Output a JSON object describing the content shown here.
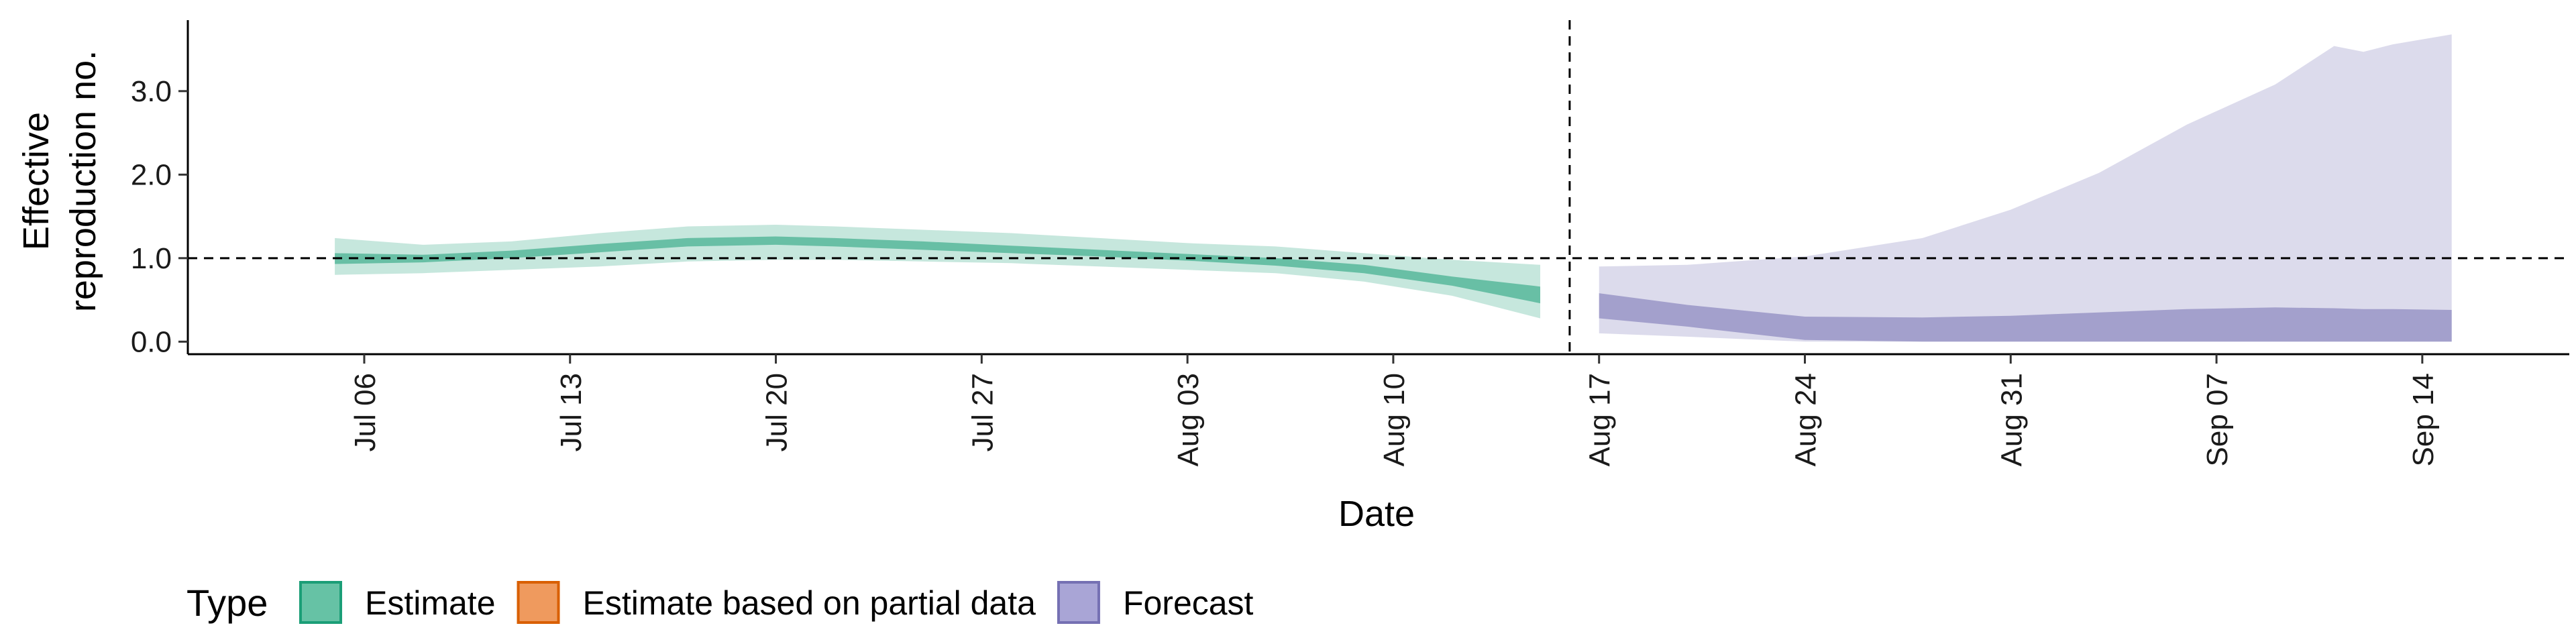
{
  "chart_data": {
    "type": "area",
    "xlabel": "Date",
    "ylabel_lines": [
      "Effective",
      "reproduction no."
    ],
    "x_type": "date",
    "x_ticks": [
      {
        "date": "2020-07-06",
        "label": "Jul 06"
      },
      {
        "date": "2020-07-13",
        "label": "Jul 13"
      },
      {
        "date": "2020-07-20",
        "label": "Jul 20"
      },
      {
        "date": "2020-07-27",
        "label": "Jul 27"
      },
      {
        "date": "2020-08-03",
        "label": "Aug 03"
      },
      {
        "date": "2020-08-10",
        "label": "Aug 10"
      },
      {
        "date": "2020-08-17",
        "label": "Aug 17"
      },
      {
        "date": "2020-08-24",
        "label": "Aug 24"
      },
      {
        "date": "2020-08-31",
        "label": "Aug 31"
      },
      {
        "date": "2020-09-07",
        "label": "Sep 07"
      },
      {
        "date": "2020-09-14",
        "label": "Sep 14"
      }
    ],
    "xlim": [
      "2020-06-30",
      "2020-09-19"
    ],
    "y_ticks": [
      {
        "value": 0,
        "label": "0.0"
      },
      {
        "value": 1,
        "label": "1.0"
      },
      {
        "value": 2,
        "label": "2.0"
      },
      {
        "value": 3,
        "label": "3.0"
      }
    ],
    "ylim": [
      -0.15,
      3.85
    ],
    "reference_line_y": 1.0,
    "forecast_start_line": "2020-08-16",
    "grid": false,
    "legend": {
      "title": "Type",
      "position": "bottom",
      "items": [
        {
          "label": "Estimate",
          "fill": "#66c2a5",
          "border": "#1b9e77"
        },
        {
          "label": "Estimate based on partial data",
          "fill": "#ef9a5e",
          "border": "#d95f02"
        },
        {
          "label": "Forecast",
          "fill": "#a9a5d6",
          "border": "#7570b3"
        }
      ]
    },
    "series": [
      {
        "name": "Estimate",
        "color": "#1b9e77",
        "outer_alpha": 0.25,
        "inner_alpha": 0.55,
        "points": [
          {
            "x": "2020-07-05",
            "outer": [
              0.8,
              1.24
            ],
            "inner": [
              0.93,
              1.06
            ]
          },
          {
            "x": "2020-07-08",
            "outer": [
              0.82,
              1.16
            ],
            "inner": [
              0.95,
              1.04
            ]
          },
          {
            "x": "2020-07-11",
            "outer": [
              0.86,
              1.2
            ],
            "inner": [
              1.0,
              1.09
            ]
          },
          {
            "x": "2020-07-14",
            "outer": [
              0.9,
              1.3
            ],
            "inner": [
              1.07,
              1.17
            ]
          },
          {
            "x": "2020-07-17",
            "outer": [
              0.96,
              1.38
            ],
            "inner": [
              1.14,
              1.24
            ]
          },
          {
            "x": "2020-07-20",
            "outer": [
              0.98,
              1.4
            ],
            "inner": [
              1.16,
              1.26
            ]
          },
          {
            "x": "2020-07-22",
            "outer": [
              0.98,
              1.38
            ],
            "inner": [
              1.14,
              1.24
            ]
          },
          {
            "x": "2020-07-25",
            "outer": [
              0.96,
              1.34
            ],
            "inner": [
              1.1,
              1.2
            ]
          },
          {
            "x": "2020-07-28",
            "outer": [
              0.94,
              1.3
            ],
            "inner": [
              1.06,
              1.15
            ]
          },
          {
            "x": "2020-07-31",
            "outer": [
              0.9,
              1.24
            ],
            "inner": [
              1.02,
              1.1
            ]
          },
          {
            "x": "2020-08-03",
            "outer": [
              0.86,
              1.18
            ],
            "inner": [
              0.97,
              1.05
            ]
          },
          {
            "x": "2020-08-06",
            "outer": [
              0.82,
              1.14
            ],
            "inner": [
              0.91,
              1.0
            ]
          },
          {
            "x": "2020-08-09",
            "outer": [
              0.72,
              1.06
            ],
            "inner": [
              0.82,
              0.92
            ]
          },
          {
            "x": "2020-08-12",
            "outer": [
              0.55,
              0.98
            ],
            "inner": [
              0.67,
              0.78
            ]
          },
          {
            "x": "2020-08-15",
            "outer": [
              0.28,
              0.92
            ],
            "inner": [
              0.46,
              0.66
            ]
          }
        ]
      },
      {
        "name": "Forecast",
        "color": "#7570b3",
        "outer_alpha": 0.25,
        "inner_alpha": 0.55,
        "points": [
          {
            "x": "2020-08-17",
            "outer": [
              0.1,
              0.9
            ],
            "inner": [
              0.28,
              0.58
            ]
          },
          {
            "x": "2020-08-20",
            "outer": [
              0.06,
              0.92
            ],
            "inner": [
              0.18,
              0.44
            ]
          },
          {
            "x": "2020-08-24",
            "outer": [
              0.0,
              1.02
            ],
            "inner": [
              0.02,
              0.3
            ]
          },
          {
            "x": "2020-08-28",
            "outer": [
              0.0,
              1.24
            ],
            "inner": [
              0.0,
              0.29
            ]
          },
          {
            "x": "2020-08-31",
            "outer": [
              0.0,
              1.58
            ],
            "inner": [
              0.0,
              0.31
            ]
          },
          {
            "x": "2020-09-03",
            "outer": [
              0.0,
              2.02
            ],
            "inner": [
              0.0,
              0.35
            ]
          },
          {
            "x": "2020-09-06",
            "outer": [
              0.0,
              2.6
            ],
            "inner": [
              0.0,
              0.39
            ]
          },
          {
            "x": "2020-09-09",
            "outer": [
              0.0,
              3.08
            ],
            "inner": [
              0.0,
              0.41
            ]
          },
          {
            "x": "2020-09-11",
            "outer": [
              0.0,
              3.54
            ],
            "inner": [
              0.0,
              0.4
            ]
          },
          {
            "x": "2020-09-12",
            "outer": [
              0.0,
              3.47
            ],
            "inner": [
              0.0,
              0.39
            ]
          },
          {
            "x": "2020-09-13",
            "outer": [
              0.0,
              3.56
            ],
            "inner": [
              0.0,
              0.39
            ]
          },
          {
            "x": "2020-09-15",
            "outer": [
              0.0,
              3.68
            ],
            "inner": [
              0.0,
              0.38
            ]
          }
        ]
      }
    ]
  }
}
